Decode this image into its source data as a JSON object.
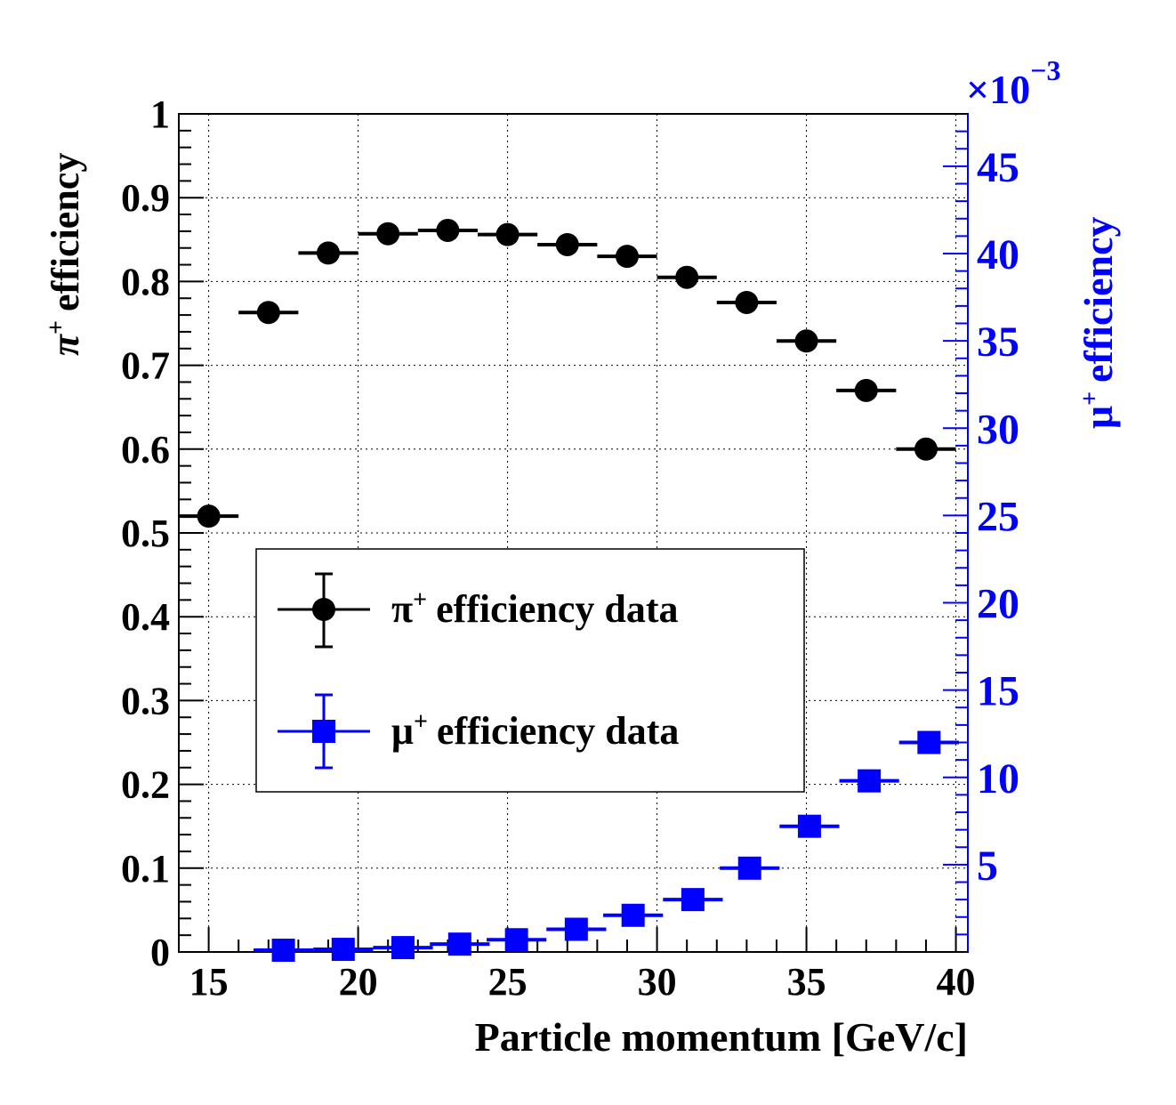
{
  "chart_data": {
    "type": "scatter",
    "title": "",
    "xlabel": "Particle momentum [GeV/c]",
    "ylabel": "efficiency",
    "ylabel_prefix": "π",
    "ylabel_sup": "+",
    "y2label": "efficiency",
    "y2label_prefix": "μ",
    "y2label_sup": "+",
    "y2_exponent_base": "×10",
    "y2_exponent_power": "−3",
    "xlim": [
      14,
      40.4
    ],
    "ylim": [
      0,
      1
    ],
    "y2lim": [
      0,
      48
    ],
    "grid": true,
    "x_ticks": [
      "15",
      "20",
      "25",
      "30",
      "35",
      "40"
    ],
    "y_ticks": [
      "0",
      "0.1",
      "0.2",
      "0.3",
      "0.4",
      "0.5",
      "0.6",
      "0.7",
      "0.8",
      "0.9",
      "1"
    ],
    "y2_ticks": [
      "5",
      "10",
      "15",
      "20",
      "25",
      "30",
      "35",
      "40",
      "45"
    ],
    "legend_position": "center-left",
    "series": [
      {
        "name": "efficiency data",
        "name_prefix": "π",
        "name_sup": "+",
        "axis": "left",
        "marker": "circle",
        "color": "#000000",
        "x": [
          15,
          17,
          19,
          21,
          23,
          25,
          27,
          29,
          31,
          33,
          35,
          37,
          39
        ],
        "y": [
          0.52,
          0.763,
          0.834,
          0.857,
          0.861,
          0.856,
          0.844,
          0.83,
          0.805,
          0.775,
          0.729,
          0.67,
          0.6
        ],
        "xerr": 1
      },
      {
        "name": "efficiency data",
        "name_prefix": "μ",
        "name_sup": "+",
        "axis": "right",
        "marker": "square",
        "color": "#0000ff",
        "x": [
          17.5,
          19.5,
          21.5,
          23.4,
          25.3,
          27.3,
          29.2,
          31.2,
          33.1,
          35.1,
          37.1,
          39.1
        ],
        "y": [
          0.1,
          0.15,
          0.25,
          0.45,
          0.7,
          1.3,
          2.1,
          3.0,
          4.8,
          7.2,
          9.8,
          12.0
        ],
        "xerr": 1
      }
    ]
  }
}
